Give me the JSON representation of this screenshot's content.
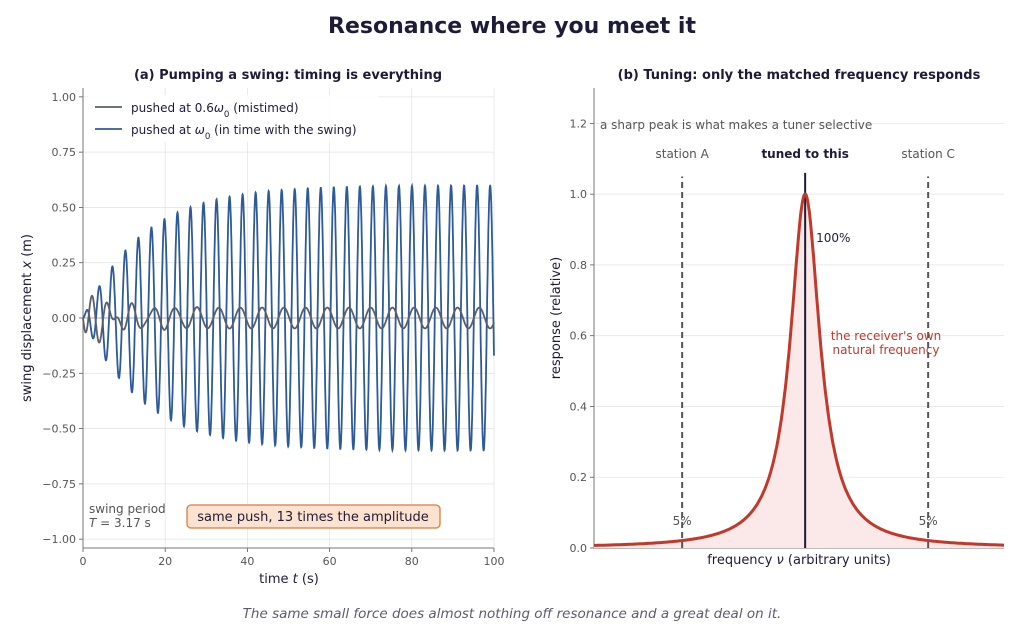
{
  "figure": {
    "title": "Resonance where you meet it",
    "caption": "The same small force does almost nothing off resonance and a great deal on it."
  },
  "colors": {
    "ink": "#1e1b3a",
    "mistimed": "#5a5f6a",
    "in_time": "#2d5b9a",
    "resonance": "#c0392b",
    "fill": "#fbe9e9",
    "annot_box_fill": "#fde2cf",
    "annot_box_edge": "#e07b39",
    "dashed": "#555555",
    "grid": "#e6e6e6"
  },
  "chart_data": [
    {
      "type": "line",
      "title": "(a)  Pumping a swing: timing is everything",
      "xlabel_pre": "time ",
      "xlabel_var": "t",
      "xlabel_post": " (s)",
      "ylabel_pre": "swing displacement ",
      "ylabel_var": "x",
      "ylabel_post": " (m)",
      "xlim": [
        0,
        100
      ],
      "ylim": [
        -1.0,
        1.0
      ],
      "xticks": [
        "0",
        "20",
        "40",
        "60",
        "80",
        "100"
      ],
      "yticks": [
        "−1.00",
        "−0.75",
        "−0.50",
        "−0.25",
        "0.00",
        "0.25",
        "0.50",
        "0.75",
        "1.00"
      ],
      "grid": true,
      "legend_position": "top-left",
      "series": [
        {
          "name_pre": "pushed at 0.6",
          "name_var": "ω",
          "name_sub": "0",
          "name_post": "  (mistimed)",
          "kind": "off-resonance",
          "amplitude_steady": 0.05,
          "transient_peak": 0.11
        },
        {
          "name_pre": "pushed at ",
          "name_var": "ω",
          "name_sub": "0",
          "name_post": "  (in time with the swing)",
          "kind": "resonant",
          "amplitude_max": 0.6,
          "amplitude_at_t": [
            [
              0,
              0.0
            ],
            [
              10,
              0.24
            ],
            [
              20,
              0.41
            ],
            [
              30,
              0.5
            ],
            [
              40,
              0.55
            ],
            [
              60,
              0.59
            ],
            [
              100,
              0.6
            ]
          ]
        }
      ],
      "period_s": 3.17,
      "annotations": {
        "period_line1": "swing period",
        "period_line2_var": "T",
        "period_line2_post": " = 3.17 s",
        "box": "same push, 13 times the amplitude"
      }
    },
    {
      "type": "line",
      "title": "(b)  Tuning: only the matched frequency responds",
      "xlabel_pre": "frequency ",
      "xlabel_var": "ν",
      "xlabel_post": " (arbitrary units)",
      "ylabel": "response (relative)",
      "xlim": [
        -1.0,
        1.0
      ],
      "ylim": [
        0.0,
        1.3
      ],
      "yticks": [
        "0.0",
        "0.2",
        "0.4",
        "0.6",
        "0.8",
        "1.0",
        "1.2"
      ],
      "grid": true,
      "series": [
        {
          "kind": "lorentzian",
          "peak_x": 0.03,
          "peak_value": 1.0,
          "value_at_edges": 0.03
        }
      ],
      "stations": [
        {
          "label": "station A",
          "x": -0.57,
          "response_label": "5%",
          "value": 0.05
        },
        {
          "label": "tuned to this",
          "x": 0.03,
          "response_label": "100%",
          "value": 1.0
        },
        {
          "label": "station C",
          "x": 0.63,
          "response_label": "5%",
          "value": 0.05
        }
      ],
      "annotations": {
        "top_note": "a sharp peak is what makes a tuner selective",
        "natural_line1": "the receiver's own",
        "natural_line2": "natural frequency"
      }
    }
  ]
}
